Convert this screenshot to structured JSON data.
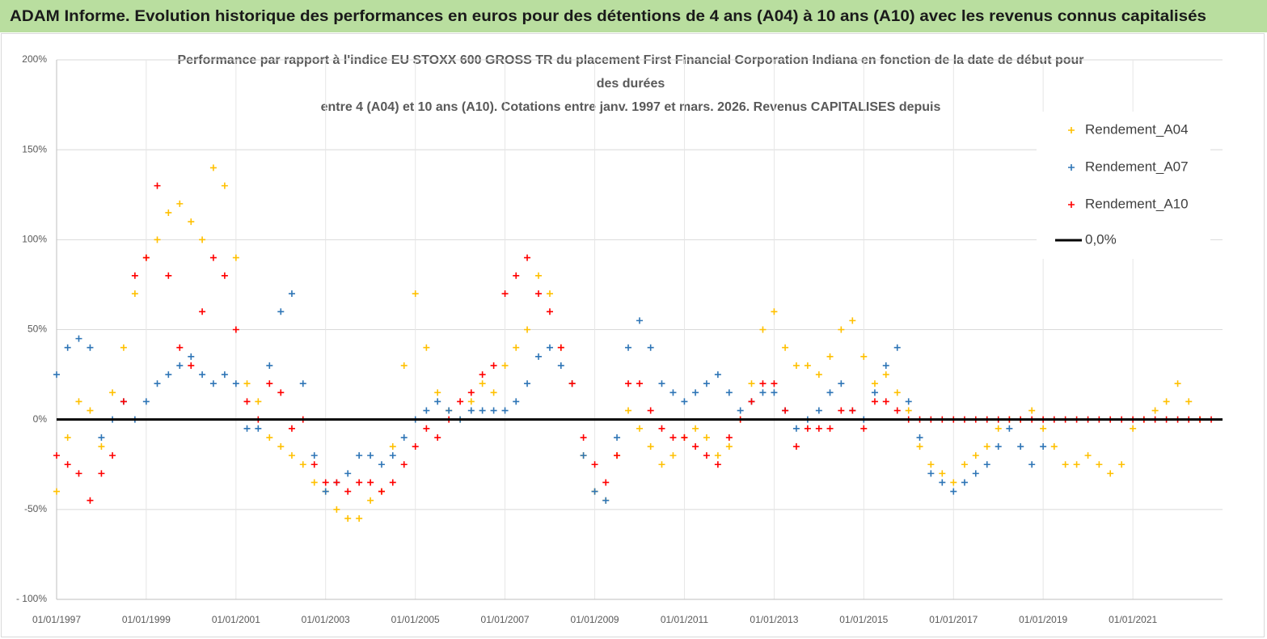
{
  "header": {
    "title": "ADAM Informe. Evolution historique des performances en euros pour des détentions de 4 ans (A04) à 10 ans (A10) avec les revenus connus capitalisés"
  },
  "chart_data": {
    "type": "scatter",
    "title_lines": [
      "Performance par rapport à l'indice EU STOXX 600 GROSS TR  du placement First Financial Corporation Indiana en fonction de la date de début pour",
      "des durées",
      "entre 4 (A04) et 10 ans (A10). Cotations entre janv. 1997 et mars. 2026. Revenus CAPITALISES depuis"
    ],
    "x": [
      "1997-01-01",
      "1997-04-01",
      "1997-07-01",
      "1997-10-01",
      "1998-01-01",
      "1998-04-01",
      "1998-07-01",
      "1998-10-01",
      "1999-01-01",
      "1999-04-01",
      "1999-07-01",
      "1999-10-01",
      "2000-01-01",
      "2000-04-01",
      "2000-07-01",
      "2000-10-01",
      "2001-01-01",
      "2001-04-01",
      "2001-07-01",
      "2001-10-01",
      "2002-01-01",
      "2002-04-01",
      "2002-07-01",
      "2002-10-01",
      "2003-01-01",
      "2003-04-01",
      "2003-07-01",
      "2003-10-01",
      "2004-01-01",
      "2004-04-01",
      "2004-07-01",
      "2004-10-01",
      "2005-01-01",
      "2005-04-01",
      "2005-07-01",
      "2005-10-01",
      "2006-01-01",
      "2006-04-01",
      "2006-07-01",
      "2006-10-01",
      "2007-01-01",
      "2007-04-01",
      "2007-07-01",
      "2007-10-01",
      "2008-01-01",
      "2008-04-01",
      "2008-07-01",
      "2008-10-01",
      "2009-01-01",
      "2009-04-01",
      "2009-07-01",
      "2009-10-01",
      "2010-01-01",
      "2010-04-01",
      "2010-07-01",
      "2010-10-01",
      "2011-01-01",
      "2011-04-01",
      "2011-07-01",
      "2011-10-01",
      "2012-01-01",
      "2012-04-01",
      "2012-07-01",
      "2012-10-01",
      "2013-01-01",
      "2013-04-01",
      "2013-07-01",
      "2013-10-01",
      "2014-01-01",
      "2014-04-01",
      "2014-07-01",
      "2014-10-01",
      "2015-01-01",
      "2015-04-01",
      "2015-07-01",
      "2015-10-01",
      "2016-01-01",
      "2016-04-01",
      "2016-07-01",
      "2016-10-01",
      "2017-01-01",
      "2017-04-01",
      "2017-07-01",
      "2017-10-01",
      "2018-01-01",
      "2018-04-01",
      "2018-07-01",
      "2018-10-01",
      "2019-01-01",
      "2019-04-01",
      "2019-07-01",
      "2019-10-01",
      "2020-01-01",
      "2020-04-01",
      "2020-07-01",
      "2020-10-01",
      "2021-01-01",
      "2021-04-01",
      "2021-07-01",
      "2021-10-01",
      "2022-01-01",
      "2022-04-01",
      "2022-07-01",
      "2022-10-01"
    ],
    "series": [
      {
        "name": "Rendement_A04",
        "color": "#ffc000",
        "values": [
          -40,
          -10,
          10,
          5,
          -15,
          15,
          40,
          70,
          90,
          100,
          115,
          120,
          110,
          100,
          140,
          130,
          90,
          20,
          10,
          -10,
          -15,
          -20,
          -25,
          -35,
          -40,
          -50,
          -55,
          -55,
          -45,
          -40,
          -15,
          30,
          70,
          40,
          15,
          5,
          0,
          10,
          20,
          15,
          30,
          40,
          50,
          80,
          70,
          40,
          20,
          -20,
          -40,
          -45,
          -20,
          5,
          -5,
          -15,
          -25,
          -20,
          -10,
          -5,
          -10,
          -20,
          -15,
          0,
          20,
          50,
          60,
          40,
          30,
          30,
          25,
          35,
          50,
          55,
          35,
          20,
          25,
          15,
          5,
          -15,
          -25,
          -30,
          -35,
          -25,
          -20,
          -15,
          -5,
          0,
          0,
          5,
          -5,
          -15,
          -25,
          -25,
          -20,
          -25,
          -30,
          -25,
          -5,
          0,
          5,
          10,
          20,
          10,
          0,
          null
        ]
      },
      {
        "name": "Rendement_A07",
        "color": "#2e75b6",
        "values": [
          25,
          40,
          45,
          40,
          -10,
          0,
          10,
          0,
          10,
          20,
          25,
          30,
          35,
          25,
          20,
          25,
          20,
          -5,
          -5,
          30,
          60,
          70,
          20,
          -20,
          -40,
          -35,
          -30,
          -20,
          -20,
          -25,
          -20,
          -10,
          0,
          5,
          10,
          5,
          0,
          5,
          5,
          5,
          5,
          10,
          20,
          35,
          40,
          30,
          20,
          -20,
          -40,
          -45,
          -10,
          40,
          55,
          40,
          20,
          15,
          10,
          15,
          20,
          25,
          15,
          5,
          10,
          15,
          15,
          5,
          -5,
          0,
          5,
          15,
          20,
          5,
          0,
          15,
          30,
          40,
          10,
          -10,
          -30,
          -35,
          -40,
          -35,
          -30,
          -25,
          -15,
          -5,
          -15,
          -25,
          -15,
          null,
          null,
          null,
          null,
          null,
          null,
          null,
          null,
          null,
          null,
          null,
          null,
          null,
          null,
          null
        ]
      },
      {
        "name": "Rendement_A10",
        "color": "#ff0000",
        "values": [
          -20,
          -25,
          -30,
          -45,
          -30,
          -20,
          10,
          80,
          90,
          130,
          80,
          40,
          30,
          60,
          90,
          80,
          50,
          10,
          0,
          20,
          15,
          -5,
          0,
          -25,
          -35,
          -35,
          -40,
          -35,
          -35,
          -40,
          -35,
          -25,
          -15,
          -5,
          -10,
          0,
          10,
          15,
          25,
          30,
          70,
          80,
          90,
          70,
          60,
          40,
          20,
          -10,
          -25,
          -35,
          -20,
          20,
          20,
          5,
          -5,
          -10,
          -10,
          -15,
          -20,
          -25,
          -10,
          0,
          10,
          20,
          20,
          5,
          -15,
          -5,
          -5,
          -5,
          5,
          5,
          -5,
          10,
          10,
          5,
          0,
          0,
          0,
          0,
          0,
          0,
          0,
          0,
          0,
          0,
          0,
          0,
          0,
          0,
          0,
          0,
          0,
          0,
          0,
          0,
          0,
          0,
          0,
          0,
          0,
          0,
          0,
          0
        ]
      }
    ],
    "reference_line": {
      "name": "0,0%",
      "value": 0,
      "color": "#000000"
    },
    "xlim": [
      "1997-01-01",
      "2023-01-01"
    ],
    "xticks": [
      {
        "value": "1997-01-01",
        "label": "01/01/1997"
      },
      {
        "value": "1999-01-01",
        "label": "01/01/1999"
      },
      {
        "value": "2001-01-01",
        "label": "01/01/2001"
      },
      {
        "value": "2003-01-01",
        "label": "01/01/2003"
      },
      {
        "value": "2005-01-01",
        "label": "01/01/2005"
      },
      {
        "value": "2007-01-01",
        "label": "01/01/2007"
      },
      {
        "value": "2009-01-01",
        "label": "01/01/2009"
      },
      {
        "value": "2011-01-01",
        "label": "01/01/2011"
      },
      {
        "value": "2013-01-01",
        "label": "01/01/2013"
      },
      {
        "value": "2015-01-01",
        "label": "01/01/2015"
      },
      {
        "value": "2017-01-01",
        "label": "01/01/2017"
      },
      {
        "value": "2019-01-01",
        "label": "01/01/2019"
      },
      {
        "value": "2021-01-01",
        "label": "01/01/2021"
      }
    ],
    "ylim": [
      -100,
      200
    ],
    "yticks": [
      {
        "value": -100,
        "label": "- 100%"
      },
      {
        "value": -50,
        "label": "-50%"
      },
      {
        "value": 0,
        "label": "0%"
      },
      {
        "value": 50,
        "label": "50%"
      },
      {
        "value": 100,
        "label": "100%"
      },
      {
        "value": 150,
        "label": "150%"
      },
      {
        "value": 200,
        "label": "200%"
      }
    ],
    "grid": true,
    "legend": "upper right"
  }
}
